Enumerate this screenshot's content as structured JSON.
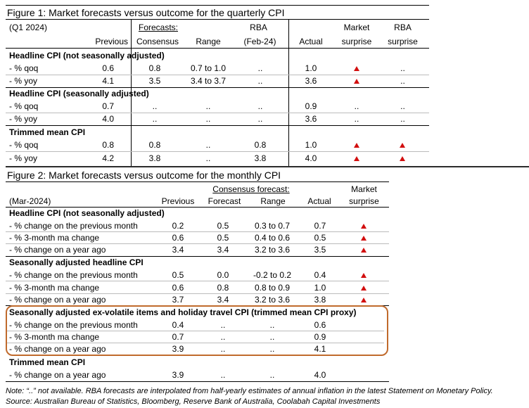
{
  "figure1": {
    "title": "Figure 1: Market forecasts versus outcome for the quarterly CPI",
    "period": "(Q1 2024)",
    "col_previous": "Previous",
    "col_forecasts": "Forecasts:",
    "col_consensus": "Consensus",
    "col_range": "Range",
    "col_rba": "RBA",
    "col_rba_sub": "(Feb-24)",
    "col_actual": "Actual",
    "col_market": "Market",
    "col_market_sub": "surprise",
    "col_rba_surprise": "RBA",
    "col_rba_surprise_sub": "surprise",
    "sections": [
      {
        "heading": "Headline CPI (not seasonally adjusted)",
        "rows": [
          {
            "label": " - % qoq",
            "previous": "0.6",
            "consensus": "0.8",
            "range": "0.7 to 1.0",
            "rba": "..",
            "actual": "1.0",
            "market": "up",
            "rba_s": ".."
          },
          {
            "label": " - % yoy",
            "previous": "4.1",
            "consensus": "3.5",
            "range": "3.4 to 3.7",
            "rba": "..",
            "actual": "3.6",
            "market": "up",
            "rba_s": ".."
          }
        ]
      },
      {
        "heading": "Headline CPI (seasonally adjusted)",
        "rows": [
          {
            "label": " - % qoq",
            "previous": "0.7",
            "consensus": "..",
            "range": "..",
            "rba": "..",
            "actual": "0.9",
            "market": "..",
            "rba_s": ".."
          },
          {
            "label": " - % yoy",
            "previous": "4.0",
            "consensus": "..",
            "range": "..",
            "rba": "..",
            "actual": "3.6",
            "market": "..",
            "rba_s": ".."
          }
        ]
      },
      {
        "heading": "Trimmed mean CPI",
        "rows": [
          {
            "label": " - % qoq",
            "previous": "0.8",
            "consensus": "0.8",
            "range": "..",
            "rba": "0.8",
            "actual": "1.0",
            "market": "up",
            "rba_s": "up"
          },
          {
            "label": " - % yoy",
            "previous": "4.2",
            "consensus": "3.8",
            "range": "..",
            "rba": "3.8",
            "actual": "4.0",
            "market": "up",
            "rba_s": "up"
          }
        ]
      }
    ]
  },
  "figure2": {
    "title": "Figure 2: Market forecasts versus outcome for the monthly CPI",
    "period": "(Mar-2024)",
    "col_previous": "Previous",
    "col_consensus_forecast": "Consensus forecast:",
    "col_forecast": "Forecast",
    "col_range": "Range",
    "col_actual": "Actual",
    "col_market": "Market",
    "col_market_sub": "surprise",
    "sections": [
      {
        "heading": "Headline CPI (not seasonally adjusted)",
        "rows": [
          {
            "label": " - % change on the previous month",
            "previous": "0.2",
            "forecast": "0.5",
            "range": "0.3 to 0.7",
            "actual": "0.7",
            "market": "up"
          },
          {
            "label": " - % 3-month ma change",
            "previous": "0.6",
            "forecast": "0.5",
            "range": "0.4 to 0.6",
            "actual": "0.5",
            "market": "up"
          },
          {
            "label": " - % change on a year ago",
            "previous": "3.4",
            "forecast": "3.4",
            "range": "3.2 to 3.6",
            "actual": "3.5",
            "market": "up"
          }
        ]
      },
      {
        "heading": "Seasonally adjusted headline CPI",
        "rows": [
          {
            "label": " - % change on the previous month",
            "previous": "0.5",
            "forecast": "0.0",
            "range": "-0.2 to 0.2",
            "actual": "0.4",
            "market": "up"
          },
          {
            "label": " - % 3-month ma change",
            "previous": "0.6",
            "forecast": "0.8",
            "range": "0.8 to 0.9",
            "actual": "1.0",
            "market": "up"
          },
          {
            "label": " - % change on a year ago",
            "previous": "3.7",
            "forecast": "3.4",
            "range": "3.2 to 3.6",
            "actual": "3.8",
            "market": "up"
          }
        ]
      },
      {
        "heading": "Seasonally adjusted ex-volatile items and holiday travel CPI (trimmed mean CPI proxy)",
        "rows": [
          {
            "label": " - % change on the previous month",
            "previous": "0.4",
            "forecast": "..",
            "range": "..",
            "actual": "0.6",
            "market": ""
          },
          {
            "label": " - % 3-month ma change",
            "previous": "0.7",
            "forecast": "..",
            "range": "..",
            "actual": "0.9",
            "market": ""
          },
          {
            "label": " - % change on a year ago",
            "previous": "3.9",
            "forecast": "..",
            "range": "..",
            "actual": "4.1",
            "market": ""
          }
        ]
      },
      {
        "heading": "Trimmed mean CPI",
        "rows": [
          {
            "label": " - % change on a year ago",
            "previous": "3.9",
            "forecast": "..",
            "range": "..",
            "actual": "4.0",
            "market": ""
          }
        ]
      }
    ]
  },
  "notes": {
    "note": "Note: “..” not available.  RBA forecasts are interpolated from half-yearly estimates of annual inflation in the latest Statement on Monetary Policy.",
    "source": "Source: Australian Bureau of Statistics, Bloomberg, Reserve Bank of Australia, Coolabah Capital Investments"
  },
  "colors": {
    "surprise_marker": "#d20f0f",
    "highlight_box": "#c06a2c"
  }
}
